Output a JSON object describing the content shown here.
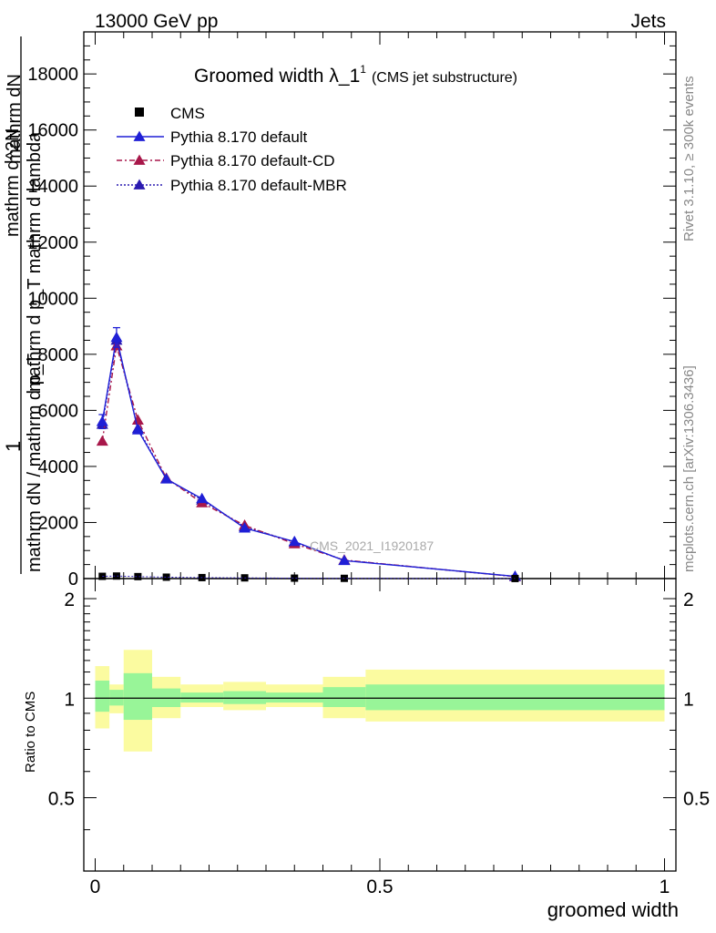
{
  "header": {
    "left": "13000 GeV pp",
    "right": "Jets"
  },
  "title": {
    "main": "Groomed width",
    "lambda": "λ_1",
    "sup": "1",
    "note": "(CMS jet substructure)"
  },
  "side_labels": {
    "rivet": "Rivet 3.1.10, ≥ 300k events",
    "mcplots": "mcplots.cern.ch [arXiv:1306.3436]"
  },
  "watermark": "CMS_2021_I1920187",
  "main_ylabel": {
    "one": "1",
    "lines": [
      "mathrm dN / mathrm d p_T",
      "mathrm d p_T mathrm d lambda",
      "mathrm d^2N",
      "mathrm dN"
    ]
  },
  "ratio_ylabel": "Ratio to CMS",
  "xlabel": "groomed width",
  "chart_data": [
    {
      "type": "line",
      "panel": "main",
      "ylim": [
        0,
        19500
      ],
      "xlim": [
        -0.02,
        1.02
      ],
      "yticks": [
        0,
        2000,
        4000,
        6000,
        8000,
        10000,
        12000,
        14000,
        16000,
        18000
      ],
      "ytick_labels": [
        "0",
        "2000",
        "4000",
        "6000",
        "8000",
        "10000",
        "12000",
        "14000",
        "16000",
        "18000"
      ],
      "legend": [
        "CMS",
        "Pythia 8.170 default",
        "Pythia 8.170 default-CD",
        "Pythia 8.170 default-MBR"
      ],
      "legend_position": "top-left",
      "x": [
        0.0125,
        0.0375,
        0.075,
        0.125,
        0.1875,
        0.2625,
        0.35,
        0.4375,
        0.7375
      ],
      "series": [
        {
          "name": "CMS",
          "color": "#000000",
          "values": [
            80,
            90,
            70,
            50,
            35,
            25,
            15,
            8,
            2
          ]
        },
        {
          "name": "Pythia 8.170 default",
          "color": "#1f1fd6",
          "style": "solid",
          "values": [
            5600,
            8600,
            5300,
            3550,
            2850,
            1800,
            1320,
            640,
            80
          ],
          "errors": [
            250,
            350,
            0,
            0,
            0,
            0,
            0,
            0,
            0
          ]
        },
        {
          "name": "Pythia 8.170 default-CD",
          "color": "#a8174a",
          "style": "dashed",
          "values": [
            4900,
            8300,
            5650,
            3580,
            2700,
            1900,
            1240,
            660,
            70
          ]
        },
        {
          "name": "Pythia 8.170 default-MBR",
          "color": "#2a1ab0",
          "style": "dotted",
          "values": [
            5500,
            8500,
            5350,
            3560,
            2800,
            1850,
            1300,
            650,
            75
          ]
        }
      ]
    },
    {
      "type": "area",
      "panel": "ratio",
      "ylim": [
        0.3,
        2.3
      ],
      "yticks": [
        0.5,
        1,
        2
      ],
      "ytick_labels": [
        "0.5",
        "1",
        "2"
      ],
      "xticks": [
        0,
        0.5,
        1
      ],
      "xtick_labels": [
        "0",
        "0.5",
        "1"
      ],
      "bins": [
        [
          0,
          0.025
        ],
        [
          0.025,
          0.05
        ],
        [
          0.05,
          0.1
        ],
        [
          0.1,
          0.15
        ],
        [
          0.15,
          0.225
        ],
        [
          0.225,
          0.3
        ],
        [
          0.3,
          0.4
        ],
        [
          0.4,
          0.475
        ],
        [
          0.475,
          1
        ]
      ],
      "inner_band": [
        [
          0.91,
          1.13
        ],
        [
          0.95,
          1.06
        ],
        [
          0.86,
          1.19
        ],
        [
          0.94,
          1.07
        ],
        [
          0.97,
          1.04
        ],
        [
          0.96,
          1.05
        ],
        [
          0.97,
          1.04
        ],
        [
          0.94,
          1.08
        ],
        [
          0.92,
          1.1
        ]
      ],
      "outer_band": [
        [
          0.81,
          1.25
        ],
        [
          0.9,
          1.1
        ],
        [
          0.69,
          1.4
        ],
        [
          0.87,
          1.16
        ],
        [
          0.94,
          1.1
        ],
        [
          0.92,
          1.12
        ],
        [
          0.94,
          1.1
        ],
        [
          0.87,
          1.16
        ],
        [
          0.85,
          1.22
        ]
      ],
      "inner_color": "#98f598",
      "outer_color": "#fbfba0",
      "reference": 1
    }
  ]
}
